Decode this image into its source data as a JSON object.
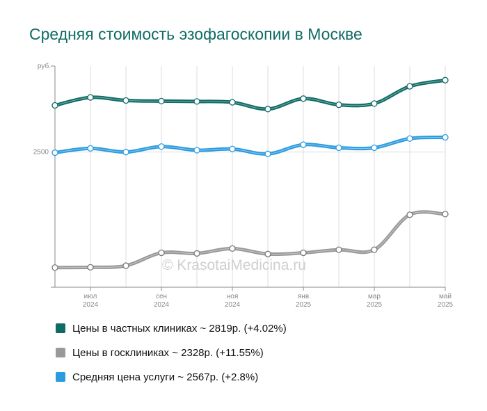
{
  "chart_data": {
    "type": "line",
    "title": "Средняя стоимость эзофагоскопии в Москве",
    "unit_label": "руб.",
    "y_ticks": [
      2500
    ],
    "ylim": [
      1400,
      3200
    ],
    "x_labels": [
      {
        "month": "июл",
        "year": "2024"
      },
      {
        "month": "сен",
        "year": "2024"
      },
      {
        "month": "ноя",
        "year": "2024"
      },
      {
        "month": "янв",
        "year": "2025"
      },
      {
        "month": "мар",
        "year": "2025"
      },
      {
        "month": "май",
        "year": "2025"
      }
    ],
    "x": [
      "2024-06",
      "2024-07",
      "2024-08",
      "2024-09",
      "2024-10",
      "2024-11",
      "2024-12",
      "2025-01",
      "2025-02",
      "2025-03",
      "2025-04",
      "2025-05"
    ],
    "series": [
      {
        "name": "Цены в частных клиниках",
        "color": "#0f6b64",
        "values": [
          2880,
          2945,
          2920,
          2915,
          2912,
          2905,
          2850,
          2935,
          2885,
          2895,
          3035,
          3085
        ]
      },
      {
        "name": "Цены в госклиниках",
        "color": "#999999",
        "values": [
          1560,
          1562,
          1575,
          1680,
          1675,
          1715,
          1670,
          1680,
          1705,
          1705,
          1990,
          1995
        ]
      },
      {
        "name": "Средняя цена услуги",
        "color": "#2b9be0",
        "values": [
          2495,
          2530,
          2500,
          2545,
          2515,
          2525,
          2485,
          2560,
          2535,
          2535,
          2610,
          2620
        ]
      }
    ],
    "grid": true,
    "legend_position": "bottom"
  },
  "legend": [
    {
      "label": "Цены в частных клиниках ~ 2819р. (+4.02%)",
      "color": "#0f6b64"
    },
    {
      "label": "Цены в госклиниках ~ 2328р. (+11.55%)",
      "color": "#999999"
    },
    {
      "label": "Средняя цена услуги ~ 2567р. (+2.8%)",
      "color": "#2b9be0"
    }
  ],
  "watermark": "© KrasotaiMedicina.ru"
}
